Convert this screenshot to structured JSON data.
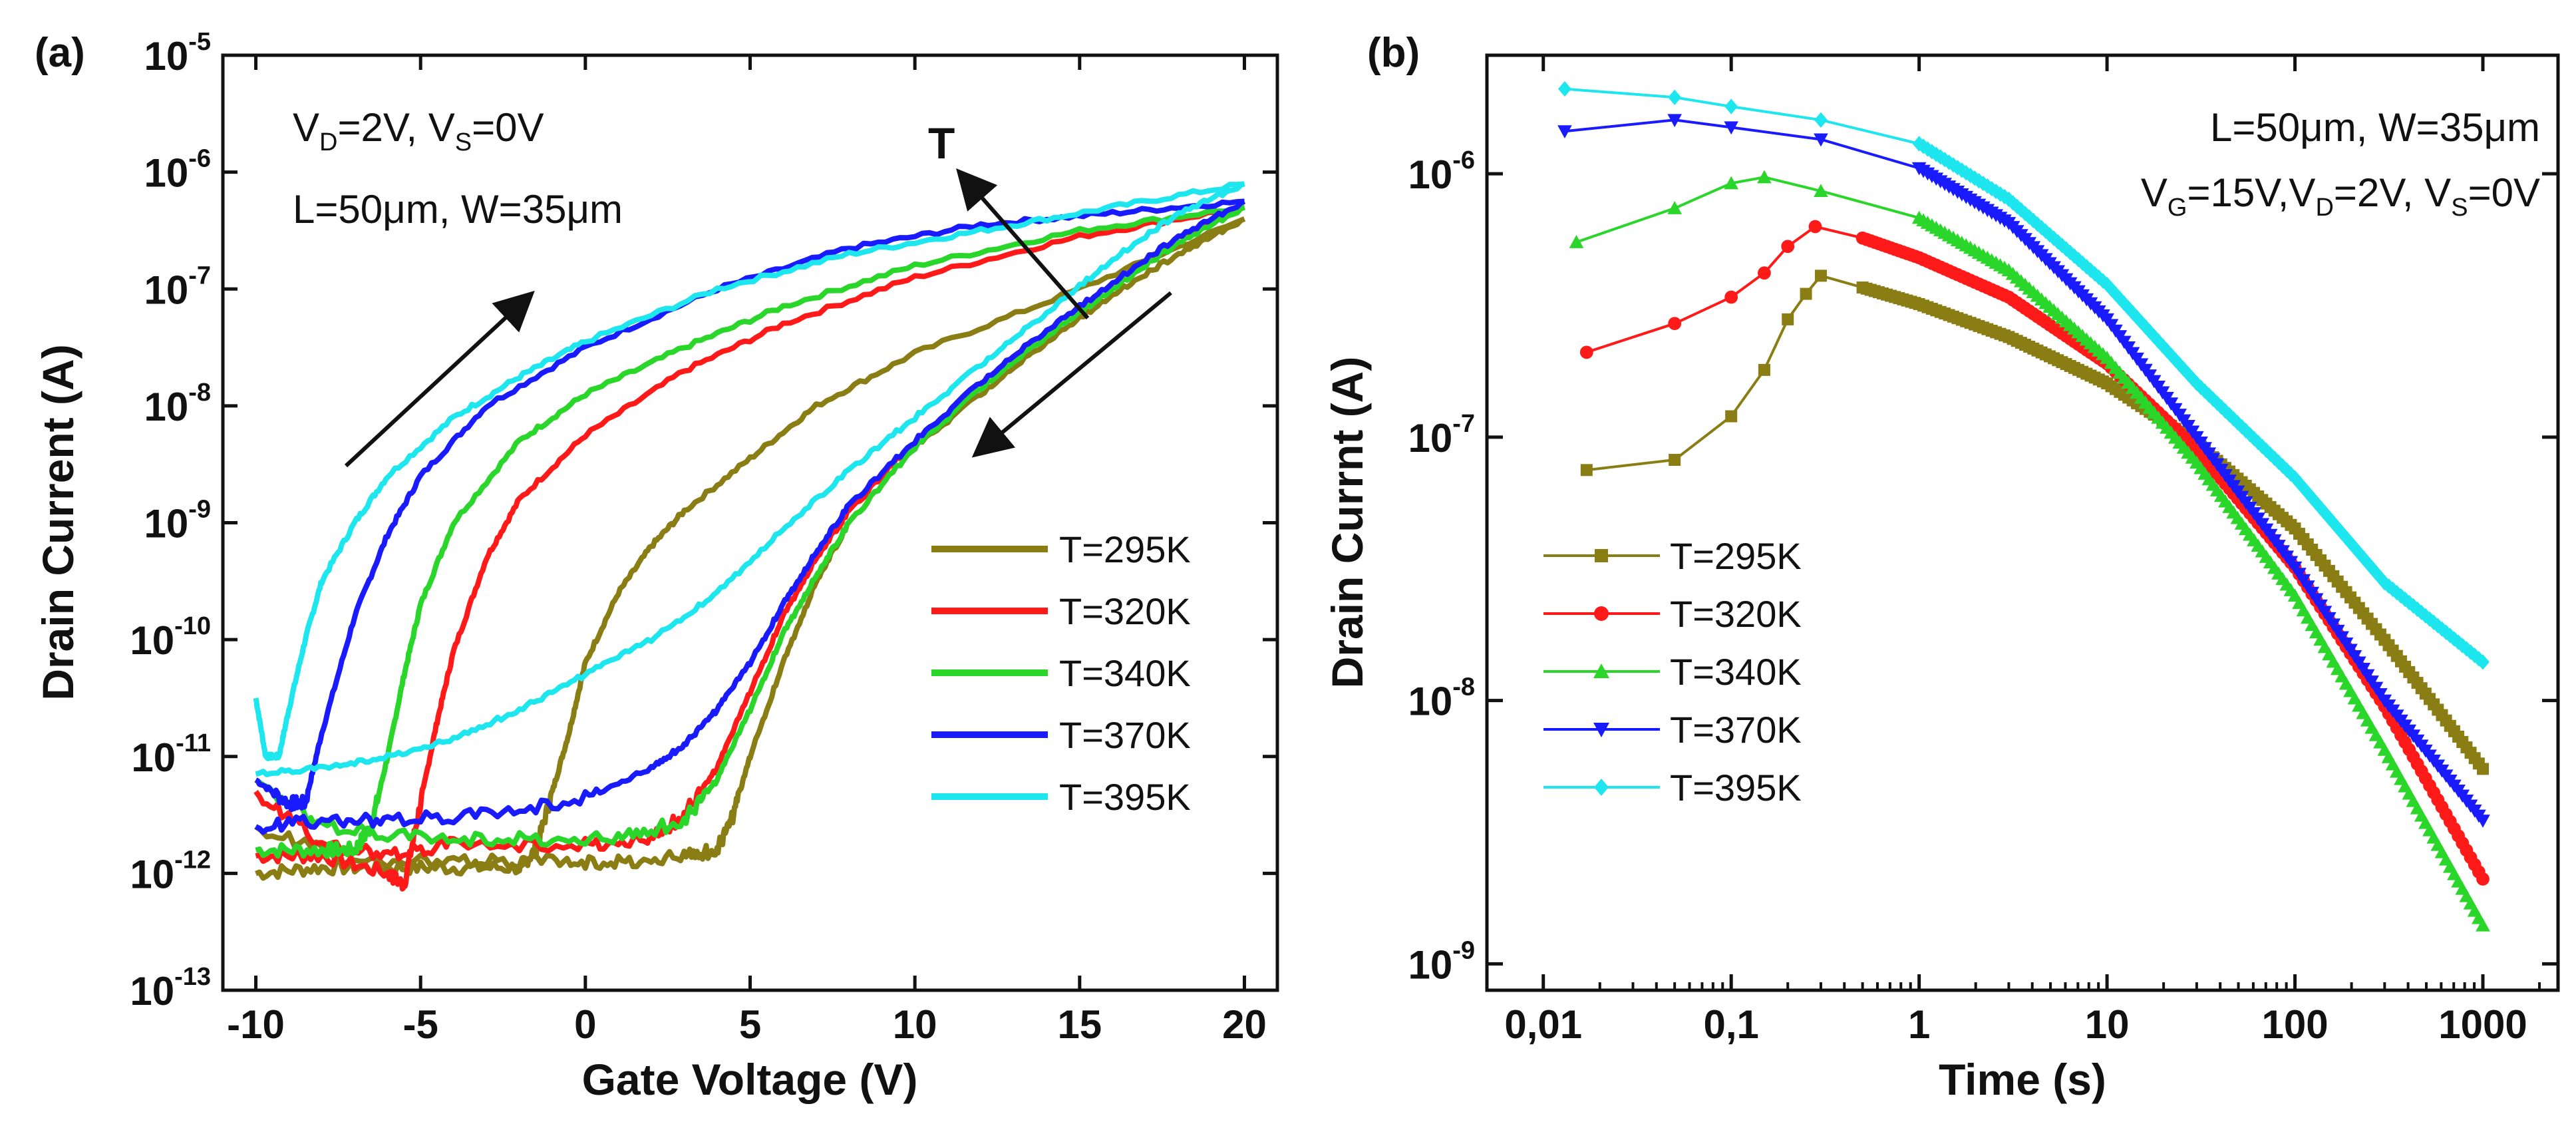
{
  "chart_data": [
    {
      "panel_label": "(a)",
      "type": "line",
      "xlabel": "Gate Voltage (V)",
      "ylabel": "Drain Current (A)",
      "xlim": [
        -11,
        21
      ],
      "ylim_log10": [
        -13,
        -5
      ],
      "xscale": "linear",
      "yscale": "log",
      "xticks": [
        -10,
        -5,
        0,
        5,
        10,
        15,
        20
      ],
      "xtick_labels": [
        "-10",
        "-5",
        "0",
        "5",
        "10",
        "15",
        "20"
      ],
      "yticks_log10": [
        -13,
        -12,
        -11,
        -10,
        -9,
        -8,
        -7,
        -6,
        -5
      ],
      "ytick_base": "10",
      "ytick_exponents": [
        "-13",
        "-12",
        "-11",
        "-10",
        "-9",
        "-8",
        "-7",
        "-6",
        "-5"
      ],
      "annotations": {
        "bias_vd": "V",
        "bias_vd_sub": "D",
        "bias_vd_val": "=2V, ",
        "bias_vs": "V",
        "bias_vs_sub": "S",
        "bias_vs_val": "=0V",
        "geometry": "L=50μm, W=35μm",
        "temp_arrow_label": "T"
      },
      "legend_position": "bottom-right",
      "series": [
        {
          "name": "T=295K",
          "color": "#8a7d14",
          "forward": [
            [
              -10,
              -12.0
            ],
            [
              -8,
              -11.95
            ],
            [
              -6,
              -11.95
            ],
            [
              -4,
              -11.95
            ],
            [
              -2,
              -11.95
            ],
            [
              -1.5,
              -11.8
            ],
            [
              -1,
              -11.3
            ],
            [
              -0.5,
              -10.8
            ],
            [
              0,
              -10.2
            ],
            [
              1,
              -9.6
            ],
            [
              2,
              -9.2
            ],
            [
              3,
              -8.9
            ],
            [
              5,
              -8.45
            ],
            [
              7,
              -8.0
            ],
            [
              10,
              -7.55
            ],
            [
              15,
              -7.0
            ],
            [
              20,
              -6.4
            ]
          ],
          "reverse": [
            [
              20,
              -6.4
            ],
            [
              18,
              -6.7
            ],
            [
              16,
              -7.05
            ],
            [
              14,
              -7.45
            ],
            [
              12,
              -7.9
            ],
            [
              10,
              -8.35
            ],
            [
              8,
              -9.0
            ],
            [
              7,
              -9.5
            ],
            [
              6,
              -10.2
            ],
            [
              5,
              -11.0
            ],
            [
              4.5,
              -11.5
            ],
            [
              4,
              -11.8
            ],
            [
              3,
              -11.85
            ],
            [
              1,
              -11.9
            ],
            [
              -1,
              -11.9
            ],
            [
              -4,
              -11.9
            ],
            [
              -7,
              -11.9
            ],
            [
              -10,
              -11.6
            ]
          ]
        },
        {
          "name": "T=320K",
          "color": "#ff1a1a",
          "forward": [
            [
              -10,
              -11.85
            ],
            [
              -8,
              -11.85
            ],
            [
              -6,
              -12.0
            ],
            [
              -5.5,
              -12.1
            ],
            [
              -5,
              -11.4
            ],
            [
              -4.5,
              -10.7
            ],
            [
              -4,
              -10.1
            ],
            [
              -3,
              -9.3
            ],
            [
              -2,
              -8.8
            ],
            [
              0,
              -8.25
            ],
            [
              3,
              -7.7
            ],
            [
              6,
              -7.3
            ],
            [
              10,
              -6.9
            ],
            [
              15,
              -6.55
            ],
            [
              20,
              -6.3
            ]
          ],
          "reverse": [
            [
              20,
              -6.3
            ],
            [
              18,
              -6.55
            ],
            [
              16,
              -6.95
            ],
            [
              14,
              -7.35
            ],
            [
              12,
              -7.8
            ],
            [
              10,
              -8.3
            ],
            [
              8,
              -8.9
            ],
            [
              7,
              -9.3
            ],
            [
              6,
              -9.8
            ],
            [
              5,
              -10.45
            ],
            [
              4,
              -11.1
            ],
            [
              3,
              -11.5
            ],
            [
              2,
              -11.7
            ],
            [
              0,
              -11.75
            ],
            [
              -4,
              -11.75
            ],
            [
              -6,
              -11.85
            ],
            [
              -8,
              -11.75
            ],
            [
              -10,
              -11.3
            ]
          ]
        },
        {
          "name": "T=340K",
          "color": "#2ad62a",
          "forward": [
            [
              -10,
              -11.8
            ],
            [
              -8,
              -11.8
            ],
            [
              -7,
              -11.8
            ],
            [
              -6.5,
              -11.6
            ],
            [
              -6,
              -11.0
            ],
            [
              -5.5,
              -10.3
            ],
            [
              -5,
              -9.7
            ],
            [
              -4,
              -9.0
            ],
            [
              -2,
              -8.3
            ],
            [
              0,
              -7.9
            ],
            [
              3,
              -7.5
            ],
            [
              6,
              -7.15
            ],
            [
              10,
              -6.8
            ],
            [
              15,
              -6.5
            ],
            [
              20,
              -6.3
            ]
          ],
          "reverse": [
            [
              20,
              -6.3
            ],
            [
              18,
              -6.6
            ],
            [
              16,
              -7.0
            ],
            [
              14,
              -7.4
            ],
            [
              12,
              -7.85
            ],
            [
              10,
              -8.35
            ],
            [
              8,
              -9.0
            ],
            [
              7,
              -9.45
            ],
            [
              6,
              -9.95
            ],
            [
              5,
              -10.6
            ],
            [
              4,
              -11.2
            ],
            [
              3,
              -11.55
            ],
            [
              1,
              -11.7
            ],
            [
              -2,
              -11.7
            ],
            [
              -5,
              -11.7
            ],
            [
              -8,
              -11.6
            ],
            [
              -10,
              -11.2
            ]
          ]
        },
        {
          "name": "T=370K",
          "color": "#1a1aff",
          "forward": [
            [
              -10,
              -11.2
            ],
            [
              -9,
              -11.4
            ],
            [
              -8.5,
              -11.4
            ],
            [
              -8,
              -10.8
            ],
            [
              -7,
              -9.8
            ],
            [
              -6,
              -9.1
            ],
            [
              -5,
              -8.6
            ],
            [
              -3,
              -8.0
            ],
            [
              0,
              -7.5
            ],
            [
              4,
              -7.0
            ],
            [
              8,
              -6.65
            ],
            [
              12,
              -6.45
            ],
            [
              16,
              -6.35
            ],
            [
              20,
              -6.25
            ]
          ],
          "reverse": [
            [
              20,
              -6.25
            ],
            [
              18,
              -6.55
            ],
            [
              16,
              -6.95
            ],
            [
              14,
              -7.35
            ],
            [
              12,
              -7.8
            ],
            [
              10,
              -8.3
            ],
            [
              8,
              -8.85
            ],
            [
              7,
              -9.25
            ],
            [
              6,
              -9.7
            ],
            [
              5,
              -10.2
            ],
            [
              4,
              -10.6
            ],
            [
              3,
              -10.9
            ],
            [
              2,
              -11.1
            ],
            [
              0,
              -11.35
            ],
            [
              -3,
              -11.5
            ],
            [
              -6,
              -11.55
            ],
            [
              -8,
              -11.55
            ],
            [
              -10,
              -11.6
            ]
          ]
        },
        {
          "name": "T=395K",
          "color": "#1ee6ee",
          "forward": [
            [
              -10,
              -10.5
            ],
            [
              -9.7,
              -11.0
            ],
            [
              -9.3,
              -11.0
            ],
            [
              -9,
              -10.6
            ],
            [
              -8.5,
              -10.0
            ],
            [
              -8,
              -9.5
            ],
            [
              -7,
              -9.0
            ],
            [
              -6,
              -8.6
            ],
            [
              -4,
              -8.1
            ],
            [
              -2,
              -7.75
            ],
            [
              0,
              -7.45
            ],
            [
              4,
              -7.0
            ],
            [
              8,
              -6.7
            ],
            [
              12,
              -6.5
            ],
            [
              16,
              -6.3
            ],
            [
              20,
              -6.1
            ]
          ],
          "reverse": [
            [
              20,
              -6.1
            ],
            [
              18,
              -6.35
            ],
            [
              16,
              -6.75
            ],
            [
              14,
              -7.2
            ],
            [
              12,
              -7.65
            ],
            [
              10,
              -8.1
            ],
            [
              8,
              -8.55
            ],
            [
              6,
              -9.05
            ],
            [
              4,
              -9.6
            ],
            [
              2,
              -10.0
            ],
            [
              0,
              -10.3
            ],
            [
              -2,
              -10.6
            ],
            [
              -4,
              -10.85
            ],
            [
              -6,
              -11.0
            ],
            [
              -8,
              -11.1
            ],
            [
              -10,
              -11.15
            ]
          ]
        }
      ]
    },
    {
      "panel_label": "(b)",
      "type": "line",
      "xlabel": "Time (s)",
      "ylabel": "Drain Currnt (A)",
      "xscale": "log",
      "yscale": "log",
      "xlim_log10": [
        -2.3,
        3.4
      ],
      "ylim_log10": [
        -9.1,
        -5.55
      ],
      "xticks_log10": [
        -2,
        -1,
        0,
        1,
        2,
        3
      ],
      "xtick_labels": [
        "0,01",
        "0,1",
        "1",
        "10",
        "100",
        "1000"
      ],
      "yticks_log10": [
        -9,
        -8,
        -7,
        -6
      ],
      "ytick_base": "10",
      "ytick_exponents": [
        "-9",
        "-8",
        "-7",
        "-6"
      ],
      "annotations": {
        "geometry": "L=50μm, W=35μm",
        "bias_vg": "V",
        "bias_vg_sub": "G",
        "bias_vg_val": "=15V,",
        "bias_vd": "V",
        "bias_vd_sub": "D",
        "bias_vd_val": "=2V, ",
        "bias_vs": "V",
        "bias_vs_sub": "S",
        "bias_vs_val": "=0V"
      },
      "legend_position": "bottom-left",
      "series": [
        {
          "name": "T=295K",
          "color": "#8a7d14",
          "marker": "square",
          "points": [
            [
              0.017,
              7.5e-08
            ],
            [
              0.05,
              8.2e-08
            ],
            [
              0.1,
              1.2e-07
            ],
            [
              0.15,
              1.8e-07
            ],
            [
              0.2,
              2.8e-07
            ],
            [
              0.25,
              3.5e-07
            ],
            [
              0.3,
              4.1e-07
            ],
            [
              0.5,
              3.7e-07
            ],
            [
              1,
              3.2e-07
            ],
            [
              3,
              2.4e-07
            ],
            [
              10,
              1.6e-07
            ],
            [
              30,
              9.5e-08
            ],
            [
              100,
              4.5e-08
            ],
            [
              300,
              1.7e-08
            ],
            [
              1000,
              5.5e-09
            ]
          ]
        },
        {
          "name": "T=320K",
          "color": "#ff1a1a",
          "marker": "circle",
          "points": [
            [
              0.017,
              2.1e-07
            ],
            [
              0.05,
              2.7e-07
            ],
            [
              0.1,
              3.4e-07
            ],
            [
              0.15,
              4.2e-07
            ],
            [
              0.2,
              5.3e-07
            ],
            [
              0.28,
              6.3e-07
            ],
            [
              0.5,
              5.7e-07
            ],
            [
              1,
              4.8e-07
            ],
            [
              3,
              3.4e-07
            ],
            [
              10,
              1.9e-07
            ],
            [
              30,
              9e-08
            ],
            [
              100,
              3.2e-08
            ],
            [
              300,
              9.5e-09
            ],
            [
              1000,
              2.1e-09
            ]
          ]
        },
        {
          "name": "T=340K",
          "color": "#2ad62a",
          "marker": "triangle-up",
          "points": [
            [
              0.015,
              5.5e-07
            ],
            [
              0.05,
              7.4e-07
            ],
            [
              0.1,
              9.2e-07
            ],
            [
              0.15,
              9.7e-07
            ],
            [
              0.3,
              8.6e-07
            ],
            [
              1,
              6.8e-07
            ],
            [
              3,
              4.3e-07
            ],
            [
              10,
              2e-07
            ],
            [
              30,
              8e-08
            ],
            [
              100,
              2.5e-08
            ],
            [
              300,
              6.5e-09
            ],
            [
              1000,
              1.4e-09
            ]
          ]
        },
        {
          "name": "T=370K",
          "color": "#1a1aff",
          "marker": "triangle-down",
          "points": [
            [
              0.013,
              1.45e-06
            ],
            [
              0.05,
              1.6e-06
            ],
            [
              0.1,
              1.5e-06
            ],
            [
              0.3,
              1.35e-06
            ],
            [
              1,
              1.05e-06
            ],
            [
              3,
              6.5e-07
            ],
            [
              10,
              2.8e-07
            ],
            [
              30,
              1e-07
            ],
            [
              100,
              3.2e-08
            ],
            [
              300,
              1e-08
            ],
            [
              1000,
              3.5e-09
            ]
          ]
        },
        {
          "name": "T=395K",
          "color": "#1ee6ee",
          "marker": "diamond",
          "points": [
            [
              0.013,
              2.1e-06
            ],
            [
              0.05,
              1.95e-06
            ],
            [
              0.1,
              1.8e-06
            ],
            [
              0.3,
              1.6e-06
            ],
            [
              1,
              1.3e-06
            ],
            [
              3,
              8e-07
            ],
            [
              10,
              3.8e-07
            ],
            [
              30,
              1.6e-07
            ],
            [
              100,
              7e-08
            ],
            [
              300,
              2.8e-08
            ],
            [
              1000,
              1.4e-08
            ]
          ]
        }
      ]
    }
  ]
}
